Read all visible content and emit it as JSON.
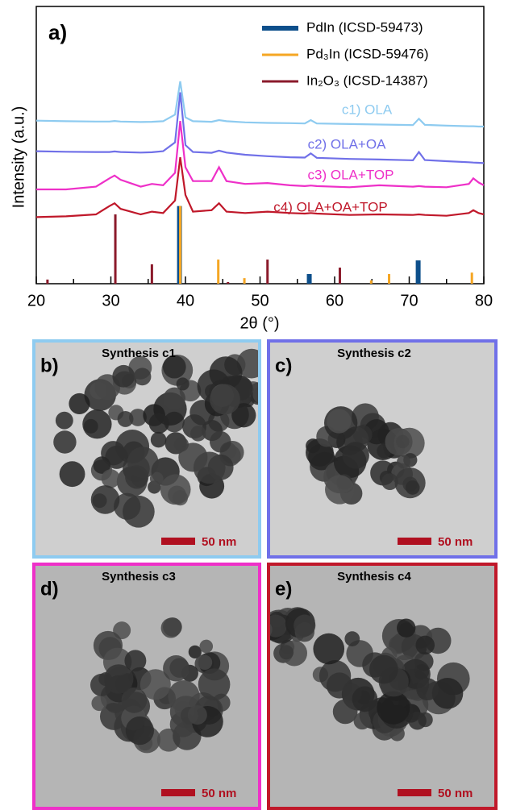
{
  "chart_data": {
    "type": "line",
    "panel_label": "a)",
    "xlabel": "2θ (°)",
    "ylabel": "Intensity (a.u.)",
    "xlim": [
      20,
      80
    ],
    "xticks": [
      20,
      30,
      40,
      50,
      60,
      70,
      80
    ],
    "xminorticks": [
      25,
      35,
      45,
      55,
      65,
      75
    ],
    "ylim": [
      0,
      100
    ],
    "x": [
      20,
      24,
      28,
      29.8,
      30.5,
      31.3,
      34,
      35.5,
      37,
      38.6,
      39.3,
      40.0,
      41,
      43.5,
      44.5,
      45.5,
      48,
      51,
      54,
      56,
      56.8,
      57.6,
      62,
      66,
      70.5,
      71.3,
      72.1,
      75,
      78,
      78.6,
      79.3,
      80
    ],
    "series": [
      {
        "name": "c1) OLA",
        "color": "#8ecbf0",
        "values": [
          58.8,
          58.6,
          58.5,
          58.5,
          58.7,
          58.5,
          58.3,
          58.4,
          58.6,
          61,
          73,
          60,
          58.6,
          58.4,
          59,
          58.6,
          58.2,
          58,
          57.9,
          57.8,
          59,
          57.8,
          57.6,
          57.4,
          57.2,
          59.5,
          57.3,
          57,
          56.8,
          56.8,
          56.7,
          56.7
        ]
      },
      {
        "name": "c2) OLA+OA",
        "color": "#7070e8",
        "values": [
          47.8,
          47.6,
          47.5,
          47.5,
          47.7,
          47.5,
          47.3,
          47.4,
          47.8,
          51,
          69,
          50,
          47.5,
          47.2,
          48,
          47.3,
          46.5,
          46,
          45.6,
          45.5,
          47,
          45.4,
          45,
          44.8,
          44.5,
          47.5,
          44.6,
          44.2,
          43.8,
          43.7,
          43.6,
          43.5
        ]
      },
      {
        "name": "c3) OLA+TOP",
        "color": "#ee30c8",
        "values": [
          34,
          34,
          35,
          38,
          39,
          37.5,
          35,
          36,
          35.5,
          40,
          58.7,
          42,
          37,
          37,
          42,
          37,
          36,
          36.3,
          35.5,
          35.2,
          35.4,
          35.2,
          34.8,
          35.5,
          35,
          35.2,
          35,
          34.8,
          36,
          38,
          36.5,
          35.5
        ]
      },
      {
        "name": "c4) OLA+OA+TOP",
        "color": "#c0182a",
        "values": [
          24,
          24.3,
          25,
          28,
          29,
          27,
          25,
          26,
          25.5,
          30,
          45.6,
          32,
          26,
          26.5,
          29,
          26,
          25.5,
          26,
          25.5,
          25.3,
          25.5,
          25.3,
          24.8,
          25,
          24.8,
          25,
          24.8,
          24.5,
          25.5,
          26.5,
          25.5,
          25
        ]
      }
    ],
    "references": [
      {
        "name": "PdIn (ICSD-59473)",
        "color": "#0d4f8b",
        "x": [
          39.2,
          56.6,
          71.2
        ],
        "values": [
          28,
          3.5,
          8.4
        ]
      },
      {
        "name": "Pd₃In (ICSD-59476)",
        "color": "#f5a623",
        "x": [
          39.3,
          44.4,
          47.9,
          64.9,
          67.3,
          78.4
        ],
        "values": [
          28,
          8.7,
          2,
          1.2,
          3.5,
          4
        ]
      },
      {
        "name": "In₂O₃ (ICSD-14387)",
        "color": "#8b1a2b",
        "x": [
          21.5,
          30.6,
          35.5,
          45.7,
          51.0,
          60.7
        ],
        "values": [
          1.5,
          25,
          7,
          0.6,
          8.7,
          5.8
        ]
      }
    ]
  },
  "panels": [
    {
      "label": "b)",
      "title": "Synthesis c1",
      "scale_bar": "50 nm",
      "border_color": "#8ecbf0"
    },
    {
      "label": "c)",
      "title": "Synthesis c2",
      "scale_bar": "50 nm",
      "border_color": "#7070e8"
    },
    {
      "label": "d)",
      "title": "Synthesis c3",
      "scale_bar": "50 nm",
      "border_color": "#ee30c8"
    },
    {
      "label": "e)",
      "title": "Synthesis c4",
      "scale_bar": "50 nm",
      "border_color": "#c0182a"
    }
  ]
}
